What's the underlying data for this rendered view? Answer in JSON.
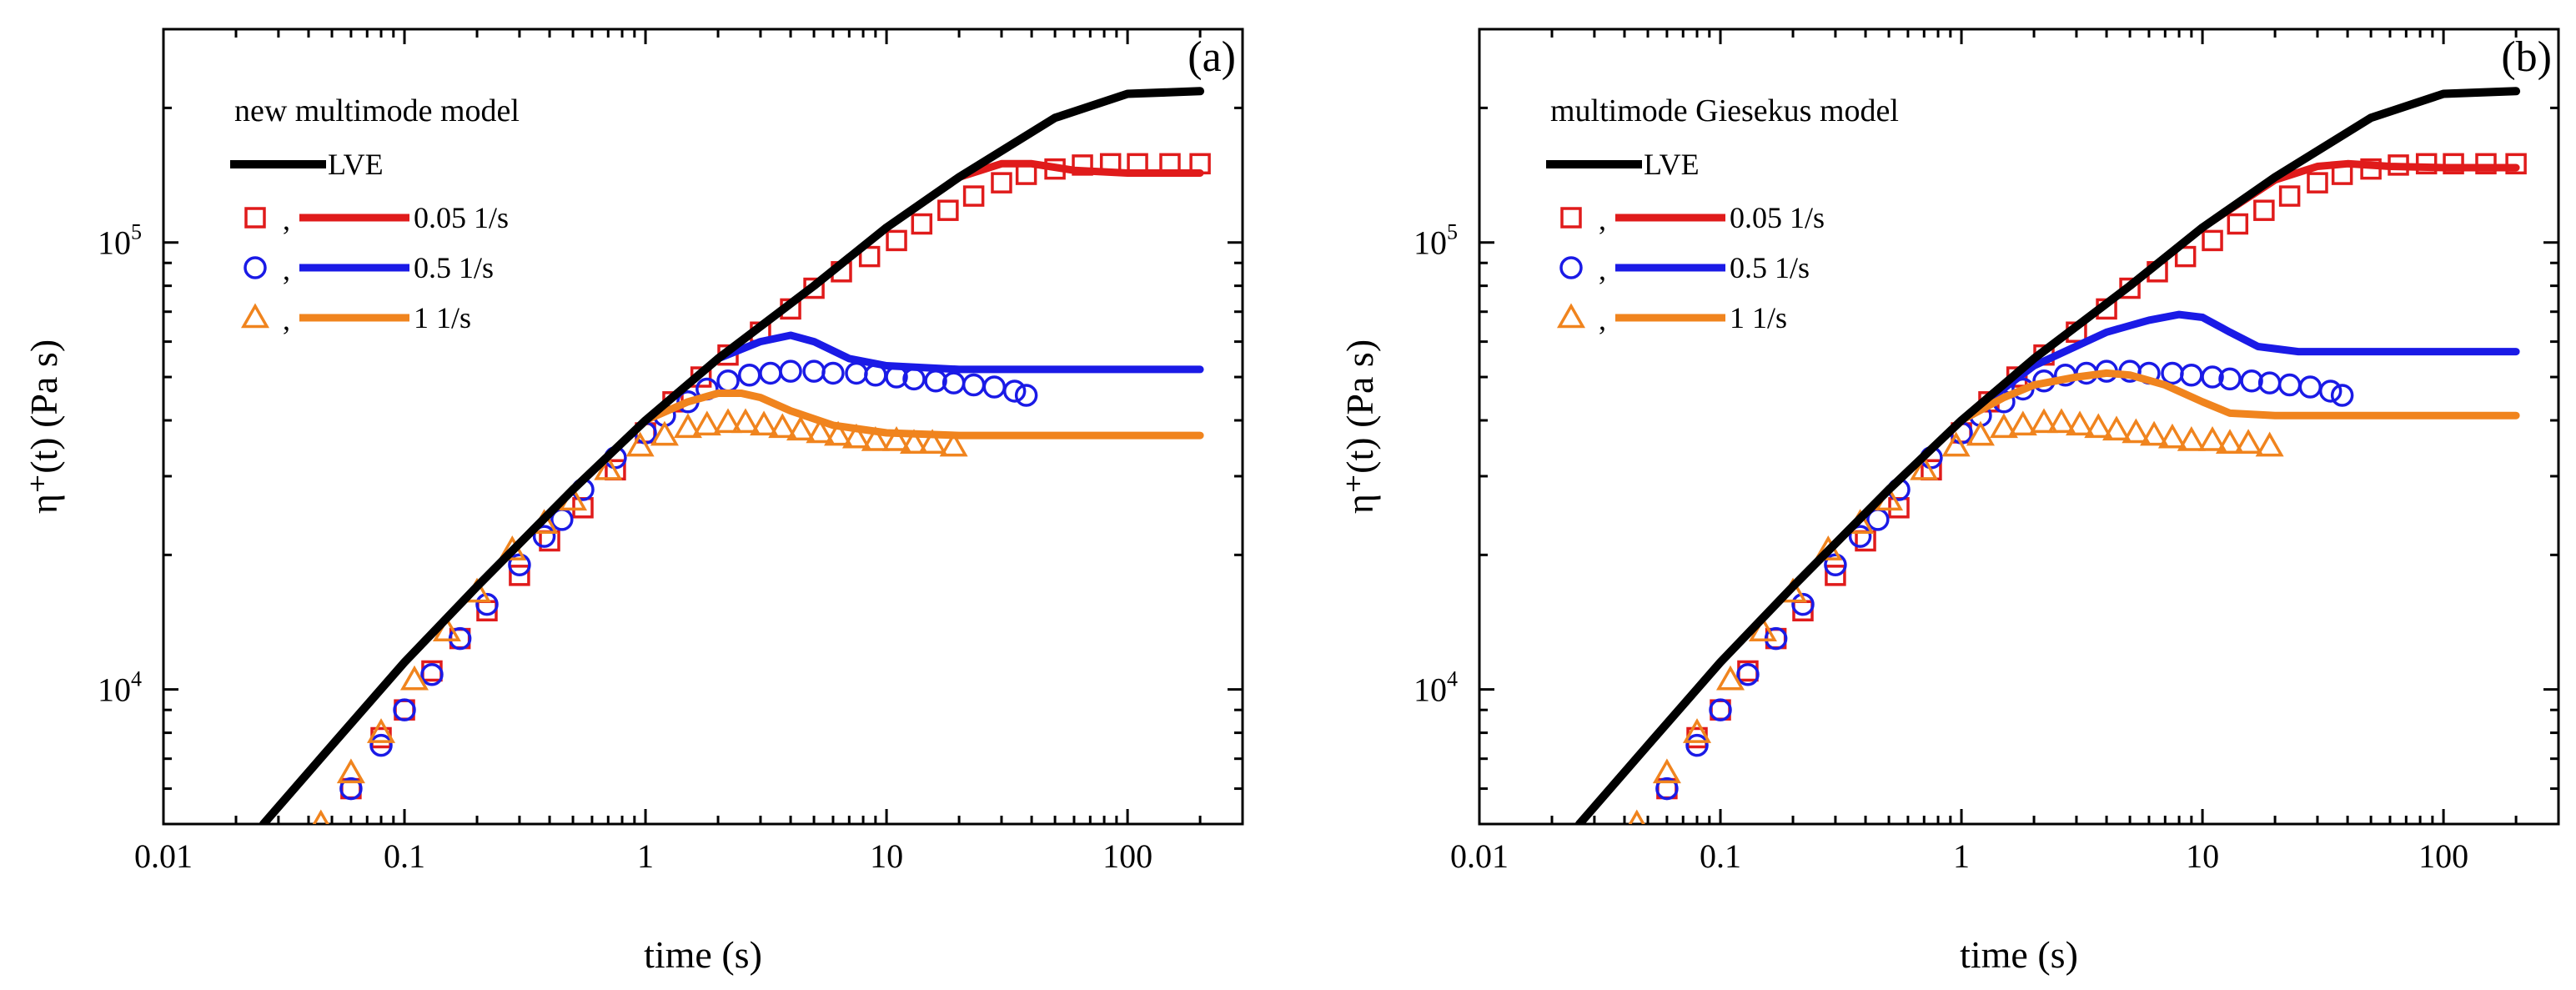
{
  "chart_data": [
    {
      "type": "line",
      "panel_label": "(a)",
      "legend_title": "new multimode model",
      "xlabel": "time (s)",
      "ylabel": "η⁺(t) (Pa s)",
      "xscale": "log",
      "yscale": "log",
      "xlim": [
        0.01,
        300
      ],
      "ylim": [
        5000,
        300000
      ],
      "x_ticks": [
        {
          "value": 0.01,
          "label": "0.01"
        },
        {
          "value": 0.1,
          "label": "0.1"
        },
        {
          "value": 1,
          "label": "1"
        },
        {
          "value": 10,
          "label": "10"
        },
        {
          "value": 100,
          "label": "100"
        }
      ],
      "y_ticks": [
        {
          "value": 10000,
          "base": "10",
          "exp": "4"
        },
        {
          "value": 100000,
          "base": "10",
          "exp": "5"
        }
      ],
      "lve": {
        "name": "LVE",
        "color": "#000000",
        "x": [
          0.026,
          0.05,
          0.1,
          0.2,
          0.5,
          1,
          2,
          5,
          10,
          20,
          50,
          100,
          200
        ],
        "y": [
          5000,
          7500,
          11500,
          17000,
          28000,
          40000,
          55000,
          80000,
          108000,
          140000,
          190000,
          215000,
          218000
        ]
      },
      "series": [
        {
          "name": "0.05 1/s",
          "color": "#e01b1b",
          "marker": "square",
          "model_x": [
            1,
            2,
            5,
            10,
            20,
            30,
            40,
            60,
            100,
            200
          ],
          "model_y": [
            40000,
            55000,
            80000,
            108000,
            140000,
            150000,
            150000,
            145000,
            143000,
            143000
          ],
          "exp_x": [
            0.06,
            0.08,
            0.1,
            0.13,
            0.17,
            0.22,
            0.3,
            0.4,
            0.55,
            0.75,
            1,
            1.3,
            1.7,
            2.2,
            3,
            4,
            5,
            6.5,
            8.5,
            11,
            14,
            18,
            23,
            30,
            38,
            50,
            65,
            85,
            110,
            150,
            200
          ],
          "exp_y": [
            6000,
            7800,
            9000,
            11000,
            13000,
            15000,
            18000,
            21500,
            25500,
            31000,
            37500,
            44000,
            50000,
            56000,
            63000,
            71000,
            79000,
            86000,
            93000,
            101000,
            110000,
            118000,
            127000,
            136000,
            142000,
            146000,
            149000,
            150000,
            150000,
            150000,
            150000
          ]
        },
        {
          "name": "0.5 1/s",
          "color": "#1a1ae6",
          "marker": "circle",
          "model_x": [
            1,
            2,
            3,
            4,
            5,
            7,
            10,
            20,
            50,
            100,
            200
          ],
          "model_y": [
            40000,
            55000,
            60000,
            62000,
            60000,
            55000,
            53000,
            52000,
            52000,
            52000,
            52000
          ],
          "exp_x": [
            0.06,
            0.08,
            0.1,
            0.13,
            0.17,
            0.22,
            0.3,
            0.38,
            0.45,
            0.55,
            0.75,
            1,
            1.2,
            1.5,
            1.8,
            2.2,
            2.7,
            3.3,
            4,
            5,
            6,
            7.5,
            9,
            11,
            13,
            16,
            19,
            23,
            28,
            34,
            38
          ],
          "exp_y": [
            6000,
            7500,
            9000,
            10800,
            13000,
            15500,
            19000,
            22000,
            24000,
            28000,
            33000,
            37500,
            41000,
            44000,
            47000,
            49000,
            50500,
            51000,
            51500,
            51500,
            51000,
            51000,
            50500,
            50000,
            49500,
            49000,
            48500,
            48000,
            47500,
            46500,
            45500
          ]
        },
        {
          "name": "1 1/s",
          "color": "#f0841e",
          "marker": "triangle",
          "model_x": [
            1,
            1.5,
            2,
            2.5,
            3,
            4,
            6,
            10,
            20,
            50,
            100,
            200
          ],
          "model_y": [
            40000,
            44000,
            46000,
            46000,
            45000,
            42000,
            39000,
            37500,
            37000,
            37000,
            37000,
            37000
          ],
          "exp_x": [
            0.045,
            0.06,
            0.08,
            0.11,
            0.15,
            0.2,
            0.28,
            0.38,
            0.5,
            0.7,
            0.95,
            1.2,
            1.5,
            1.8,
            2.2,
            2.6,
            3.1,
            3.7,
            4.4,
            5.3,
            6.3,
            7.5,
            9,
            11,
            13,
            15.5,
            19
          ],
          "exp_y": [
            5000,
            6500,
            8000,
            10500,
            13500,
            16500,
            20500,
            23500,
            26500,
            31000,
            35000,
            37000,
            38500,
            39000,
            39500,
            39500,
            39000,
            38500,
            38000,
            37500,
            37000,
            36500,
            36000,
            36000,
            35500,
            35500,
            35000
          ]
        }
      ]
    },
    {
      "type": "line",
      "panel_label": "(b)",
      "legend_title": "multimode Giesekus model",
      "xlabel": "time (s)",
      "ylabel": "η⁺(t) (Pa s)",
      "xscale": "log",
      "yscale": "log",
      "xlim": [
        0.01,
        300
      ],
      "ylim": [
        5000,
        300000
      ],
      "x_ticks": [
        {
          "value": 0.01,
          "label": "0.01"
        },
        {
          "value": 0.1,
          "label": "0.1"
        },
        {
          "value": 1,
          "label": "1"
        },
        {
          "value": 10,
          "label": "10"
        },
        {
          "value": 100,
          "label": "100"
        }
      ],
      "y_ticks": [
        {
          "value": 10000,
          "base": "10",
          "exp": "4"
        },
        {
          "value": 100000,
          "base": "10",
          "exp": "5"
        }
      ],
      "lve": {
        "name": "LVE",
        "color": "#000000",
        "x": [
          0.026,
          0.05,
          0.1,
          0.2,
          0.5,
          1,
          2,
          5,
          10,
          20,
          50,
          100,
          200
        ],
        "y": [
          5000,
          7500,
          11500,
          17000,
          28000,
          40000,
          55000,
          80000,
          108000,
          140000,
          190000,
          215000,
          218000
        ]
      },
      "series": [
        {
          "name": "0.05 1/s",
          "color": "#e01b1b",
          "marker": "square",
          "model_x": [
            1,
            2,
            5,
            10,
            20,
            30,
            40,
            60,
            100,
            200
          ],
          "model_y": [
            40000,
            55000,
            80000,
            108000,
            138000,
            148000,
            150000,
            148000,
            147000,
            147000
          ],
          "exp_x": [
            0.06,
            0.08,
            0.1,
            0.13,
            0.17,
            0.22,
            0.3,
            0.4,
            0.55,
            0.75,
            1,
            1.3,
            1.7,
            2.2,
            3,
            4,
            5,
            6.5,
            8.5,
            11,
            14,
            18,
            23,
            30,
            38,
            50,
            65,
            85,
            110,
            150,
            200
          ],
          "exp_y": [
            6000,
            7800,
            9000,
            11000,
            13000,
            15000,
            18000,
            21500,
            25500,
            31000,
            37500,
            44000,
            50000,
            56000,
            63000,
            71000,
            79000,
            86000,
            93000,
            101000,
            110000,
            118000,
            127000,
            136000,
            142000,
            146000,
            149000,
            150000,
            150000,
            150000,
            150000
          ]
        },
        {
          "name": "0.5 1/s",
          "color": "#1a1ae6",
          "marker": "circle",
          "model_x": [
            1,
            2,
            4,
            6,
            8,
            10,
            13,
            17,
            25,
            50,
            100,
            200
          ],
          "model_y": [
            40000,
            53000,
            63000,
            67000,
            69000,
            68000,
            63000,
            58500,
            57000,
            57000,
            57000,
            57000
          ],
          "exp_x": [
            0.06,
            0.08,
            0.1,
            0.13,
            0.17,
            0.22,
            0.3,
            0.38,
            0.45,
            0.55,
            0.75,
            1,
            1.2,
            1.5,
            1.8,
            2.2,
            2.7,
            3.3,
            4,
            5,
            6,
            7.5,
            9,
            11,
            13,
            16,
            19,
            23,
            28,
            34,
            38
          ],
          "exp_y": [
            6000,
            7500,
            9000,
            10800,
            13000,
            15500,
            19000,
            22000,
            24000,
            28000,
            33000,
            37500,
            41000,
            44000,
            47000,
            49000,
            50500,
            51000,
            51500,
            51500,
            51000,
            51000,
            50500,
            50000,
            49500,
            49000,
            48500,
            48000,
            47500,
            46500,
            45500
          ]
        },
        {
          "name": "1 1/s",
          "color": "#f0841e",
          "marker": "triangle",
          "model_x": [
            1,
            1.5,
            2,
            3,
            4,
            5,
            7,
            10,
            13,
            20,
            50,
            100,
            200
          ],
          "model_y": [
            40000,
            45000,
            48000,
            50000,
            51000,
            50500,
            48000,
            44000,
            41500,
            41000,
            41000,
            41000,
            41000
          ],
          "exp_x": [
            0.045,
            0.06,
            0.08,
            0.11,
            0.15,
            0.2,
            0.28,
            0.38,
            0.5,
            0.7,
            0.95,
            1.2,
            1.5,
            1.8,
            2.2,
            2.6,
            3.1,
            3.7,
            4.4,
            5.3,
            6.3,
            7.5,
            9,
            11,
            13,
            15.5,
            19
          ],
          "exp_y": [
            5000,
            6500,
            8000,
            10500,
            13500,
            16500,
            20500,
            23500,
            26500,
            31000,
            35000,
            37000,
            38500,
            39000,
            39500,
            39500,
            39000,
            38500,
            38000,
            37500,
            37000,
            36500,
            36000,
            36000,
            35500,
            35500,
            35000
          ]
        }
      ]
    }
  ]
}
